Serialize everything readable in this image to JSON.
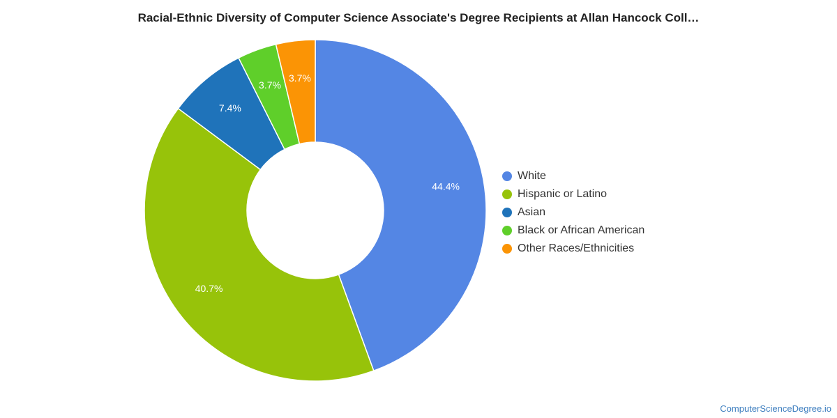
{
  "chart_data": {
    "type": "pie",
    "donut": true,
    "title": "Racial-Ethnic Diversity of Computer Science Associate's Degree Recipients at Allan Hancock Coll…",
    "slices": [
      {
        "name": "White",
        "value": 44.4,
        "label": "44.4%",
        "color": "#5486e4"
      },
      {
        "name": "Hispanic or Latino",
        "value": 40.7,
        "label": "40.7%",
        "color": "#97c30a"
      },
      {
        "name": "Asian",
        "value": 7.4,
        "label": "7.4%",
        "color": "#1f73ba"
      },
      {
        "name": "Black or African American",
        "value": 3.7,
        "label": "3.7%",
        "color": "#5fcf2a"
      },
      {
        "name": "Other Races/Ethnicities",
        "value": 3.7,
        "label": "3.7%",
        "color": "#fb9405"
      }
    ],
    "legend_position": "right"
  },
  "source": "ComputerScienceDegree.io"
}
